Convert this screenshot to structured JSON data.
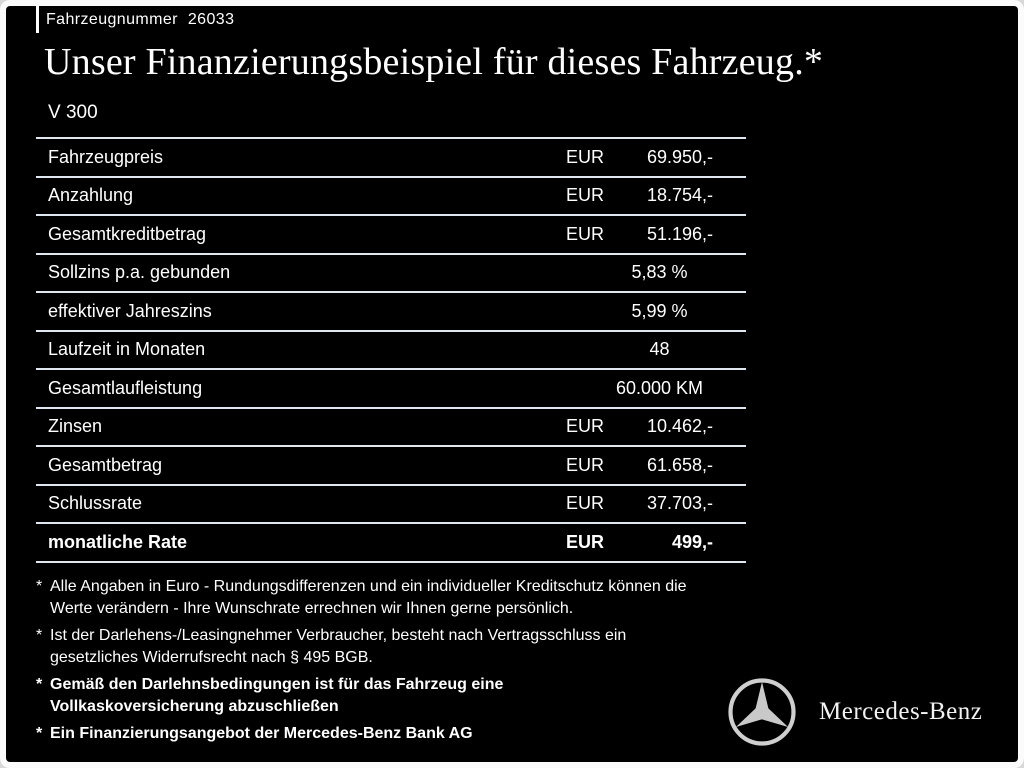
{
  "header": {
    "vehicle_number_label": "Fahrzeugnummer",
    "vehicle_number": "26033",
    "title": "Unser Finanzierungsbeispiel für dieses Fahrzeug.*",
    "model": "V 300"
  },
  "table": {
    "rows": [
      {
        "label": "Fahrzeugpreis",
        "currency": "EUR",
        "value": "69.950,-",
        "bold": false
      },
      {
        "label": "Anzahlung",
        "currency": "EUR",
        "value": "18.754,-",
        "bold": false
      },
      {
        "label": "Gesamtkreditbetrag",
        "currency": "EUR",
        "value": "51.196,-",
        "bold": false
      },
      {
        "label": "Sollzins p.a. gebunden",
        "currency": "",
        "value": "5,83 %",
        "bold": false
      },
      {
        "label": "effektiver Jahreszins",
        "currency": "",
        "value": "5,99 %",
        "bold": false
      },
      {
        "label": "Laufzeit in Monaten",
        "currency": "",
        "value": "48",
        "bold": false
      },
      {
        "label": "Gesamtlaufleistung",
        "currency": "",
        "value": "60.000 KM",
        "bold": false
      },
      {
        "label": "Zinsen",
        "currency": "EUR",
        "value": "10.462,-",
        "bold": false
      },
      {
        "label": "Gesamtbetrag",
        "currency": "EUR",
        "value": "61.658,-",
        "bold": false
      },
      {
        "label": "Schlussrate",
        "currency": "EUR",
        "value": "37.703,-",
        "bold": false
      },
      {
        "label": "monatliche Rate",
        "currency": "EUR",
        "value": "499,-",
        "bold": true
      }
    ]
  },
  "footnotes": [
    {
      "marker": "*",
      "bold": false,
      "lines": [
        "Alle Angaben in Euro - Rundungsdifferenzen und ein individueller Kreditschutz können die",
        "Werte verändern - Ihre Wunschrate errechnen wir Ihnen gerne persönlich."
      ]
    },
    {
      "marker": "*",
      "bold": false,
      "lines": [
        "Ist der Darlehens-/Leasingnehmer Verbraucher, besteht nach Vertragsschluss ein",
        "gesetzliches Widerrufsrecht nach § 495 BGB."
      ]
    },
    {
      "marker": "*",
      "bold": true,
      "lines": [
        "Gemäß den Darlehnsbedingungen ist für das Fahrzeug eine",
        "Vollkaskoversicherung abzuschließen"
      ]
    },
    {
      "marker": "*",
      "bold": true,
      "lines": [
        "Ein Finanzierungsangebot der Mercedes-Benz Bank AG"
      ]
    }
  ],
  "brand": {
    "name": "Mercedes-Benz",
    "logo_icon": "mercedes-star-icon"
  },
  "colors": {
    "background": "#000000",
    "frame_border": "#fbfbfb",
    "text": "#ffffff",
    "table_line": "#dfe8f0",
    "logo_silver": "#c9c9c9"
  }
}
